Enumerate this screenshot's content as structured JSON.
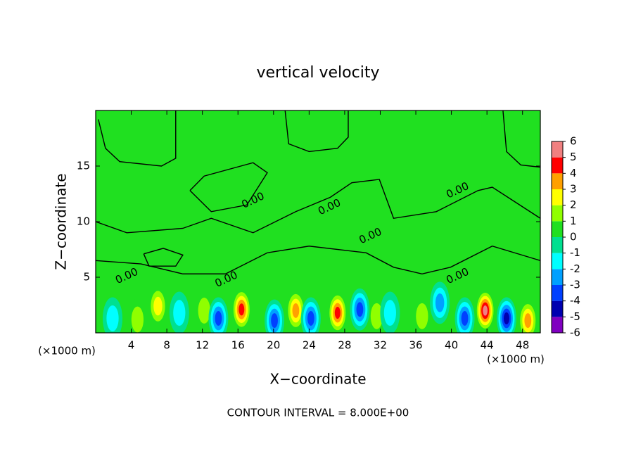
{
  "chart_data": {
    "type": "contour",
    "title": "vertical velocity",
    "xlabel": "X−coordinate",
    "ylabel": "Z−coordinate",
    "x_unit": "(×1000 m)",
    "footer": "CONTOUR INTERVAL = 8.000E+00",
    "xlim": [
      0,
      50
    ],
    "ylim": [
      0,
      20
    ],
    "xticks": [
      4,
      8,
      12,
      16,
      20,
      24,
      28,
      32,
      36,
      40,
      44,
      48
    ],
    "yticks": [
      5,
      10,
      15
    ],
    "colorbar": {
      "levels": [
        -6,
        -5,
        -4,
        -3,
        -2,
        -1,
        0,
        1,
        2,
        3,
        4,
        5,
        6
      ],
      "colors": [
        "#8000c0",
        "#0000b0",
        "#0040ff",
        "#00a0ff",
        "#00ffff",
        "#00e090",
        "#20e020",
        "#90ff00",
        "#ffff00",
        "#ffa000",
        "#ff0000",
        "#f08080"
      ]
    },
    "cells": {
      "x": [
        16.4,
        27.2,
        43.8,
        48.6,
        7,
        22.5,
        36.7,
        4.7,
        12.2,
        31.6,
        13.8,
        24.2,
        29.7,
        41.5,
        46.2,
        20.1,
        1.9,
        9.4,
        33.1,
        38.7
      ],
      "z": [
        2.1,
        1.8,
        2,
        1.1,
        2.4,
        2,
        1.5,
        1.2,
        2,
        1.5,
        1.3,
        1.3,
        2.1,
        1.3,
        1.3,
        1.1,
        1.3,
        1.8,
        1.8,
        2.7
      ],
      "values": [
        5,
        5,
        6,
        4,
        3,
        4,
        2,
        2,
        2,
        2,
        -4,
        -4,
        -4,
        -4,
        -5,
        -4,
        -2,
        -2,
        -2,
        -3
      ]
    },
    "contours": [
      {
        "level": 0,
        "x": [
          0.3,
          1.1,
          2.7,
          7.4,
          9,
          9
        ],
        "z": [
          19.2,
          16.6,
          15.4,
          15,
          15.7,
          20
        ]
      },
      {
        "level": 0,
        "x": [
          21.3,
          21.7,
          24,
          27.2,
          28.4,
          28.4
        ],
        "z": [
          20,
          17,
          16.3,
          16.6,
          17.6,
          20
        ]
      },
      {
        "level": 0,
        "x": [
          45.8,
          46.2,
          47.8,
          50
        ],
        "z": [
          20,
          16.3,
          15.1,
          14.9
        ]
      },
      {
        "level": 0,
        "x": [
          10.6,
          13,
          17,
          19.3,
          17.7,
          12.2,
          10.6
        ],
        "z": [
          12.8,
          10.9,
          11.5,
          14.4,
          15.3,
          14.1,
          12.8
        ]
      },
      {
        "level": 0,
        "x": [
          0,
          3.5,
          9.8,
          13,
          17.7,
          22.5,
          26.4,
          28.8,
          31.9,
          33.5,
          38.3,
          43,
          44.6,
          50
        ],
        "z": [
          10,
          9,
          9.4,
          10.3,
          9,
          10.9,
          12.2,
          13.5,
          13.8,
          10.3,
          10.9,
          12.8,
          13.1,
          10.3
        ]
      },
      {
        "level": 0,
        "x": [
          0,
          5.1,
          9.8,
          14.6,
          19.3,
          24,
          30.4,
          33.5,
          36.7,
          39.9,
          44.6,
          50
        ],
        "z": [
          6.5,
          6.2,
          5.3,
          5.3,
          7.2,
          7.8,
          7.2,
          5.9,
          5.3,
          5.9,
          7.8,
          6.5
        ]
      },
      {
        "level": 0,
        "x": [
          5.4,
          7.6,
          9.8,
          9,
          6,
          5.4
        ],
        "z": [
          7.1,
          7.6,
          7,
          6,
          6,
          7.1
        ]
      }
    ],
    "contour_labels": {
      "value": 0,
      "label": "0.00",
      "x": [
        17.7,
        26.3,
        30.9,
        40.7,
        3.5,
        14.7,
        40.7
      ],
      "z": [
        11.9,
        11.3,
        8.7,
        12.8,
        5.1,
        4.8,
        5.1
      ]
    }
  }
}
